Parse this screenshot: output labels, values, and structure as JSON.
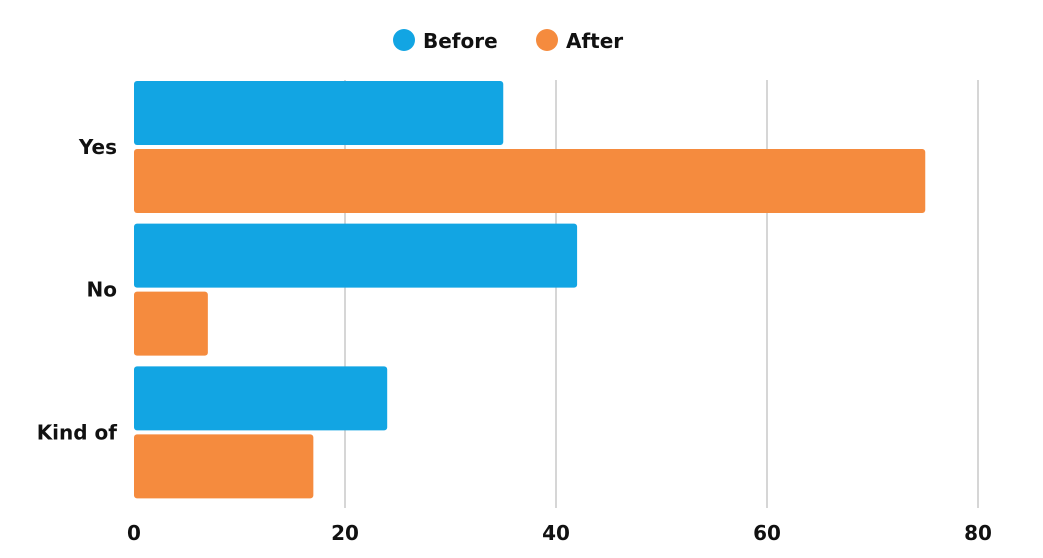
{
  "chart_data": {
    "type": "bar",
    "orientation": "horizontal",
    "categories": [
      "Yes",
      "No",
      "Kind of"
    ],
    "series": [
      {
        "name": "Before",
        "color": "#12a5e3",
        "values": [
          35,
          42,
          24
        ]
      },
      {
        "name": "After",
        "color": "#f58b3e",
        "values": [
          75,
          7,
          17
        ]
      }
    ],
    "xlim": [
      0,
      80
    ],
    "xticks": [
      "0",
      "20",
      "40",
      "60",
      "80"
    ],
    "grid": true,
    "legend_position": "top-center"
  }
}
